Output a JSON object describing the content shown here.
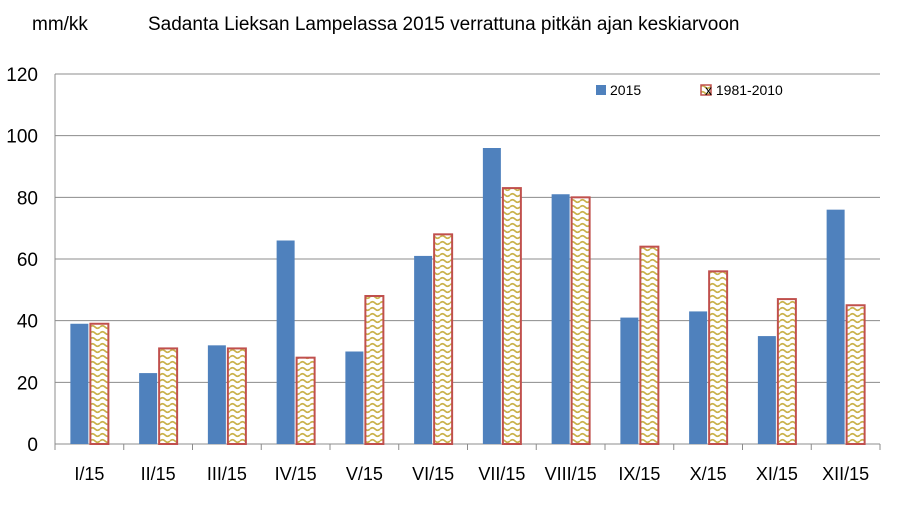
{
  "chart_data": {
    "type": "bar",
    "title": "Sadanta Lieksan Lampelassa 2015 verrattuna pitkän ajan keskiarvoon",
    "ylabel": "mm/kk",
    "xlabel": "",
    "ylim": [
      0,
      120
    ],
    "yticks": [
      0,
      20,
      40,
      60,
      80,
      100,
      120
    ],
    "grid": true,
    "legend_position": "top-right",
    "categories": [
      "I/15",
      "II/15",
      "III/15",
      "IV/15",
      "V/15",
      "VI/15",
      "VII/15",
      "VIII/15",
      "IX/15",
      "X/15",
      "XI/15",
      "XII/15"
    ],
    "series": [
      {
        "name": "2015",
        "color": "#4f81bd",
        "values": [
          39,
          23,
          32,
          66,
          30,
          61,
          96,
          81,
          41,
          43,
          35,
          76
        ]
      },
      {
        "name": "x 1981-2010",
        "color": "#c0504d",
        "pattern_color": "#c9b14a",
        "values": [
          39,
          31,
          31,
          28,
          48,
          68,
          83,
          80,
          64,
          56,
          47,
          45
        ]
      }
    ]
  }
}
